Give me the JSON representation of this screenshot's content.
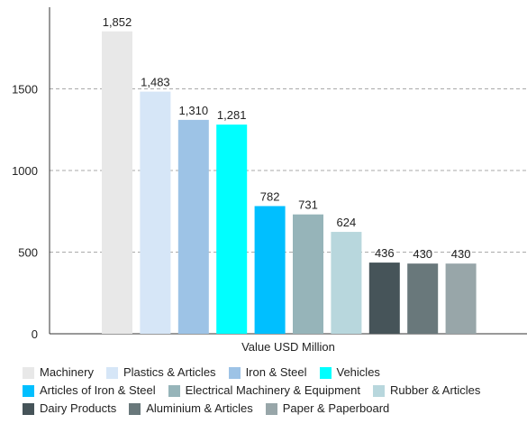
{
  "chart_data": {
    "type": "bar",
    "categories": [
      "Machinery",
      "Plastics & Articles",
      "Iron & Steel",
      "Vehicles",
      "Articles of Iron & Steel",
      "Electrical Machinery & Equipment",
      "Rubber & Articles",
      "Dairy Products",
      "Aluminium & Articles",
      "Paper & Paperboard"
    ],
    "values": [
      1852,
      1483,
      1310,
      1281,
      782,
      731,
      624,
      436,
      430,
      430
    ],
    "data_labels": [
      "1,852",
      "1,483",
      "1,310",
      "1,281",
      "782",
      "731",
      "624",
      "436",
      "430",
      "430"
    ],
    "colors": [
      "#e8e8e8",
      "#d6e6f7",
      "#9dc3e6",
      "#00ffff",
      "#00bfff",
      "#96b4b9",
      "#b8d7dd",
      "#465459",
      "#69787b",
      "#98a6a9"
    ],
    "xlabel": "Value USD Million",
    "ylabel": "",
    "ylim": [
      0,
      2000
    ],
    "yticks": [
      0,
      500,
      1000,
      1500
    ],
    "grid": true,
    "legend_position": "bottom"
  }
}
